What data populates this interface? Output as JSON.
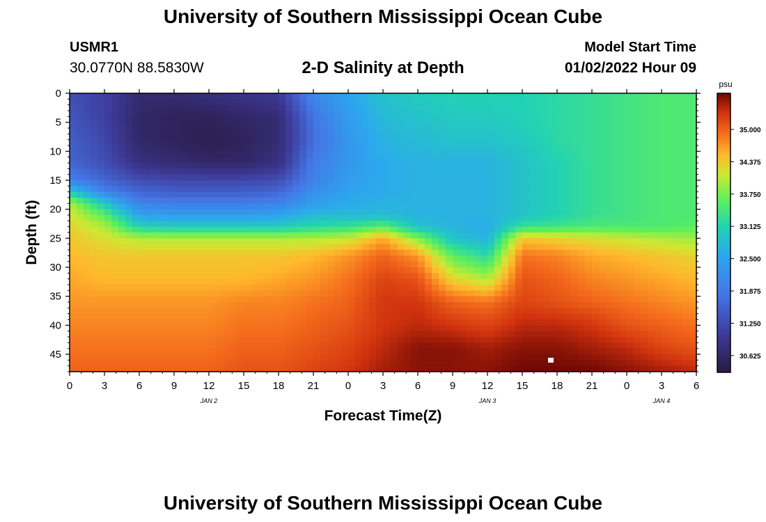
{
  "header": {
    "title": "University of Southern Mississippi Ocean Cube",
    "station_id": "USMR1",
    "station_coords": "30.0770N  88.5830W",
    "plot_title": "2-D Salinity at Depth",
    "model_start_label": "Model Start Time",
    "model_start_value": "01/02/2022 Hour 09"
  },
  "footer": {
    "title": "University of Southern Mississippi Ocean Cube"
  },
  "chart_data": {
    "type": "heatmap",
    "title": "2-D Salinity at Depth",
    "xlabel": "Forecast Time(Z)",
    "ylabel": "Depth (ft)",
    "x_range_hours": [
      0,
      54
    ],
    "x_tick_labels": [
      "0",
      "3",
      "6",
      "9",
      "12",
      "15",
      "18",
      "21",
      "0",
      "3",
      "6",
      "9",
      "12",
      "15",
      "18",
      "21",
      "0",
      "3",
      "6"
    ],
    "date_labels": [
      {
        "label": "JAN 2",
        "hour": 12
      },
      {
        "label": "JAN 3",
        "hour": 36
      },
      {
        "label": "JAN 4",
        "hour": 51
      }
    ],
    "y_range_ft": [
      0,
      48
    ],
    "y_ticks": [
      0,
      5,
      10,
      15,
      20,
      25,
      30,
      35,
      40,
      45
    ],
    "y_inverted": true,
    "colorbar": {
      "unit": "psu",
      "min": 30.3,
      "max": 35.7,
      "tick_labels": [
        "35.000",
        "34.375",
        "33.750",
        "33.125",
        "32.500",
        "31.875",
        "31.250",
        "30.625"
      ],
      "tick_values": [
        35.0,
        34.375,
        33.75,
        33.125,
        32.5,
        31.875,
        31.25,
        30.625
      ]
    },
    "hours": [
      0,
      3,
      6,
      9,
      12,
      15,
      18,
      21,
      24,
      27,
      30,
      33,
      36,
      39,
      42,
      45,
      48,
      51,
      54
    ],
    "depths": [
      0,
      4,
      8,
      12,
      15,
      17,
      19,
      21,
      23,
      25,
      28,
      32,
      36,
      40,
      44,
      48
    ],
    "values": [
      [
        31.3,
        31.1,
        30.7,
        30.7,
        30.8,
        30.9,
        31.0,
        32.1,
        32.5,
        32.9,
        33.0,
        33.1,
        33.1,
        33.1,
        33.2,
        33.3,
        33.4,
        33.5,
        33.5
      ],
      [
        31.4,
        31.1,
        30.6,
        30.5,
        30.5,
        30.6,
        30.7,
        31.8,
        32.4,
        32.8,
        32.9,
        33.0,
        33.0,
        33.1,
        33.2,
        33.3,
        33.4,
        33.5,
        33.5
      ],
      [
        31.5,
        31.2,
        30.6,
        30.5,
        30.4,
        30.5,
        30.7,
        31.7,
        32.3,
        32.7,
        32.8,
        32.9,
        32.9,
        33.0,
        33.2,
        33.3,
        33.4,
        33.5,
        33.5
      ],
      [
        31.6,
        31.3,
        30.8,
        30.7,
        30.6,
        30.6,
        30.8,
        31.9,
        32.3,
        32.6,
        32.7,
        32.7,
        32.7,
        32.9,
        33.1,
        33.3,
        33.4,
        33.5,
        33.5
      ],
      [
        32.0,
        31.6,
        31.3,
        31.2,
        31.2,
        31.2,
        31.3,
        32.0,
        32.4,
        32.6,
        32.7,
        32.7,
        32.7,
        32.9,
        33.1,
        33.3,
        33.4,
        33.5,
        33.5
      ],
      [
        33.0,
        32.0,
        31.6,
        31.5,
        31.5,
        31.5,
        31.6,
        32.2,
        32.5,
        32.6,
        32.7,
        32.7,
        32.7,
        32.9,
        33.1,
        33.3,
        33.4,
        33.5,
        33.5
      ],
      [
        34.0,
        33.0,
        32.0,
        31.9,
        31.9,
        31.9,
        32.0,
        32.4,
        32.6,
        32.7,
        32.7,
        32.7,
        32.7,
        32.9,
        33.1,
        33.3,
        33.4,
        33.5,
        33.5
      ],
      [
        34.2,
        33.6,
        32.5,
        32.4,
        32.4,
        32.4,
        32.5,
        32.8,
        32.8,
        32.8,
        32.7,
        32.7,
        32.7,
        32.9,
        33.1,
        33.3,
        33.4,
        33.5,
        33.5
      ],
      [
        34.3,
        34.0,
        33.1,
        33.0,
        33.0,
        33.0,
        33.0,
        33.2,
        33.3,
        33.6,
        32.9,
        32.7,
        32.6,
        33.3,
        33.4,
        33.5,
        33.5,
        33.5,
        33.6
      ],
      [
        34.4,
        34.2,
        34.0,
        34.0,
        34.0,
        34.0,
        34.0,
        34.0,
        34.1,
        34.6,
        33.8,
        32.9,
        32.7,
        34.4,
        34.3,
        34.2,
        34.1,
        34.0,
        33.9
      ],
      [
        34.5,
        34.4,
        34.4,
        34.4,
        34.4,
        34.4,
        34.4,
        34.5,
        34.7,
        35.0,
        34.7,
        33.6,
        33.2,
        34.9,
        34.8,
        34.6,
        34.5,
        34.4,
        34.3
      ],
      [
        34.6,
        34.5,
        34.5,
        34.5,
        34.5,
        34.5,
        34.6,
        34.7,
        34.9,
        35.2,
        35.1,
        34.3,
        34.0,
        35.1,
        35.0,
        34.8,
        34.7,
        34.6,
        34.5
      ],
      [
        34.7,
        34.7,
        34.7,
        34.7,
        34.7,
        34.8,
        34.8,
        34.9,
        35.0,
        35.3,
        35.3,
        35.0,
        34.9,
        35.2,
        35.1,
        35.0,
        34.9,
        34.8,
        34.7
      ],
      [
        34.8,
        34.8,
        34.8,
        34.8,
        34.8,
        34.9,
        34.9,
        35.0,
        35.1,
        35.3,
        35.4,
        35.3,
        35.2,
        35.4,
        35.4,
        35.3,
        35.1,
        35.0,
        34.9
      ],
      [
        34.9,
        34.9,
        34.9,
        34.9,
        34.9,
        35.0,
        35.0,
        35.1,
        35.2,
        35.4,
        35.6,
        35.6,
        35.5,
        35.6,
        35.6,
        35.5,
        35.4,
        35.2,
        35.1
      ],
      [
        35.0,
        35.0,
        35.0,
        35.0,
        35.0,
        35.1,
        35.1,
        35.2,
        35.3,
        35.5,
        35.6,
        35.6,
        35.6,
        35.7,
        35.7,
        35.7,
        35.6,
        35.5,
        35.4
      ]
    ]
  },
  "colors": {
    "plot_border": "#000000",
    "marker": "#ffffff"
  }
}
